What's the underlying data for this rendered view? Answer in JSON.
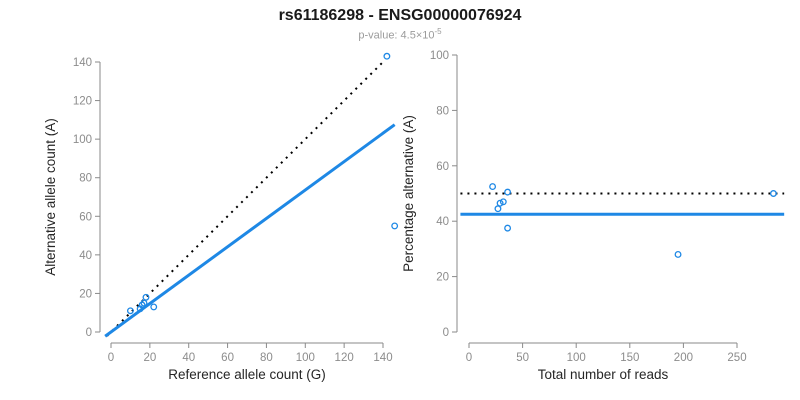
{
  "header": {
    "title": "rs61186298 - ENSG00000076924",
    "subtitle_base": "p-value: 4.5×10",
    "subtitle_exp": "-5"
  },
  "colors": {
    "background": "#FFFFFF",
    "accent_blue": "#1E88E5",
    "reference_line_black": "#000000",
    "axis_line_gray": "#8A8A8A",
    "tick_label_gray": "#8C8C8C",
    "label_black": "#262626",
    "subtitle_gray": "#9B9B9B"
  },
  "chart_data": [
    {
      "id": "allele-count-scatter",
      "type": "scatter",
      "xlabel": "Reference allele count (G)",
      "ylabel": "Alternative allele count (A)",
      "xlim": [
        0,
        140
      ],
      "ylim": [
        0,
        140
      ],
      "xticks": [
        0,
        20,
        40,
        60,
        80,
        100,
        120,
        140
      ],
      "yticks": [
        0,
        20,
        40,
        60,
        80,
        100,
        120,
        140
      ],
      "grid": false,
      "legend": "none",
      "points": [
        [
          10,
          11
        ],
        [
          15,
          12
        ],
        [
          16,
          14
        ],
        [
          17,
          15
        ],
        [
          18,
          18
        ],
        [
          22,
          13
        ],
        [
          142,
          143
        ],
        [
          146,
          55
        ]
      ],
      "lines": [
        {
          "name": "identity-line",
          "style": "dotted",
          "color": "#000000",
          "x1": -2,
          "y1": -2,
          "x2": 141,
          "y2": 141
        },
        {
          "name": "fitted-line",
          "style": "solid",
          "color": "#1E88E5",
          "x1": -3,
          "y1": -2.2,
          "x2": 146,
          "y2": 107.5
        }
      ]
    },
    {
      "id": "percentage-vs-reads-scatter",
      "type": "scatter",
      "xlabel": "Total number of reads",
      "ylabel": "Percentage alternative (A)",
      "xlim": [
        0,
        250
      ],
      "ylim": [
        0,
        100
      ],
      "xticks": [
        0,
        50,
        100,
        150,
        200,
        250
      ],
      "yticks": [
        0,
        20,
        40,
        60,
        80,
        100
      ],
      "grid": false,
      "legend": "none",
      "points": [
        [
          22,
          52.5
        ],
        [
          27,
          44.5
        ],
        [
          29,
          46.5
        ],
        [
          32,
          47
        ],
        [
          36,
          50.5
        ],
        [
          36,
          37.5
        ],
        [
          195,
          28
        ],
        [
          284,
          50
        ]
      ],
      "lines": [
        {
          "name": "expected-percentage-line",
          "style": "dotted",
          "color": "#000000",
          "x1": -8,
          "y1": 50,
          "x2": 294,
          "y2": 50
        },
        {
          "name": "observed-percentage-line",
          "style": "solid",
          "color": "#1E88E5",
          "x1": -8,
          "y1": 42.5,
          "x2": 294,
          "y2": 42.5
        }
      ]
    }
  ]
}
